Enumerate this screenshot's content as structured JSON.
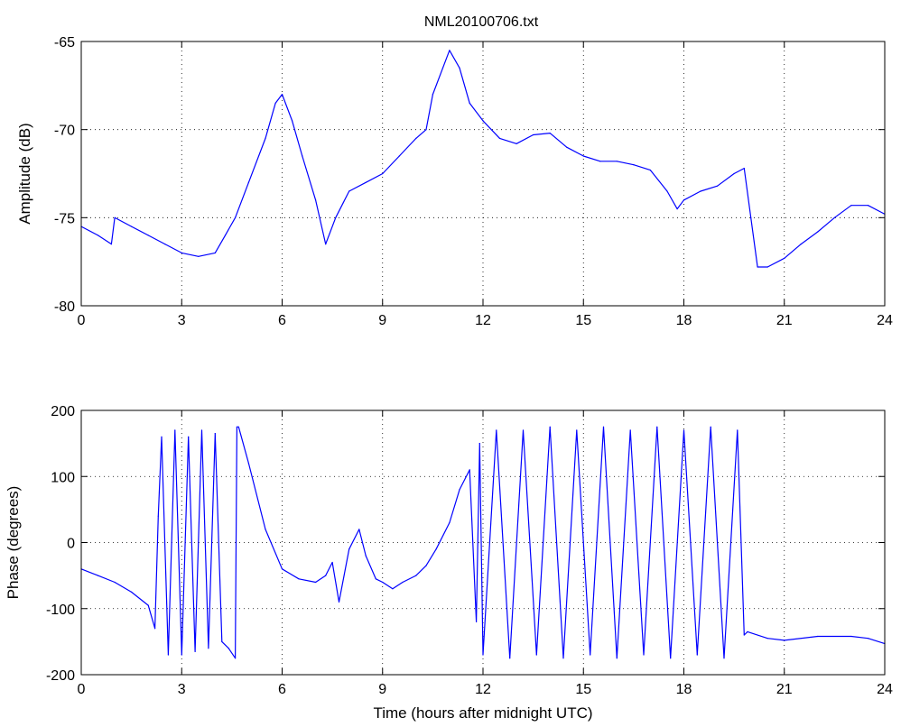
{
  "chart_data": [
    {
      "type": "line",
      "title": "NML20100706.txt",
      "xlabel": "",
      "ylabel": "Amplitude (dB)",
      "xlim": [
        0,
        24
      ],
      "ylim": [
        -80,
        -65
      ],
      "xticks": [
        "0",
        "3",
        "6",
        "9",
        "12",
        "15",
        "18",
        "21",
        "24"
      ],
      "yticks": [
        "-80",
        "-75",
        "-70",
        "-65"
      ],
      "grid": true,
      "color": "#0000ff",
      "series": [
        {
          "x": [
            0,
            0.5,
            0.9,
            1.0,
            1.5,
            2.0,
            2.5,
            3.0,
            3.5,
            4.0,
            4.3,
            4.6,
            5.0,
            5.5,
            5.8,
            6.0,
            6.3,
            6.6,
            7.0,
            7.3,
            7.6,
            8.0,
            8.5,
            9.0,
            9.5,
            10.0,
            10.3,
            10.5,
            10.8,
            11.0,
            11.3,
            11.6,
            12.0,
            12.5,
            13.0,
            13.5,
            14.0,
            14.5,
            15.0,
            15.5,
            16.0,
            16.5,
            17.0,
            17.5,
            17.8,
            18.0,
            18.5,
            19.0,
            19.5,
            19.8,
            20.0,
            20.2,
            20.5,
            21.0,
            21.5,
            22.0,
            22.5,
            23.0,
            23.5,
            24.0
          ],
          "y": [
            -75.5,
            -76.0,
            -76.5,
            -75.0,
            -75.5,
            -76.0,
            -76.5,
            -77.0,
            -77.2,
            -77.0,
            -76.0,
            -75.0,
            -73.0,
            -70.5,
            -68.5,
            -68.0,
            -69.5,
            -71.5,
            -74.0,
            -76.5,
            -75.0,
            -73.5,
            -73.0,
            -72.5,
            -71.5,
            -70.5,
            -70.0,
            -68.0,
            -66.5,
            -65.5,
            -66.5,
            -68.5,
            -69.5,
            -70.5,
            -70.8,
            -70.3,
            -70.2,
            -71.0,
            -71.5,
            -71.8,
            -71.8,
            -72.0,
            -72.3,
            -73.5,
            -74.5,
            -74.0,
            -73.5,
            -73.2,
            -72.5,
            -72.2,
            -75.0,
            -77.8,
            -77.8,
            -77.3,
            -76.5,
            -75.8,
            -75.0,
            -74.3,
            -74.3,
            -74.8
          ]
        }
      ]
    },
    {
      "type": "line",
      "title": "",
      "xlabel": "Time (hours after midnight UTC)",
      "ylabel": "Phase (degrees)",
      "xlim": [
        0,
        24
      ],
      "ylim": [
        -200,
        200
      ],
      "xticks": [
        "0",
        "3",
        "6",
        "9",
        "12",
        "15",
        "18",
        "21",
        "24"
      ],
      "yticks": [
        "-200",
        "-100",
        "0",
        "100",
        "200"
      ],
      "grid": true,
      "color": "#0000ff",
      "series": [
        {
          "x": [
            0,
            0.5,
            1.0,
            1.5,
            2.0,
            2.2,
            2.3,
            2.4,
            2.6,
            2.8,
            3.0,
            3.2,
            3.4,
            3.6,
            3.8,
            4.0,
            4.2,
            4.4,
            4.6,
            4.65,
            4.7,
            5.0,
            5.5,
            6.0,
            6.5,
            7.0,
            7.3,
            7.5,
            7.7,
            8.0,
            8.3,
            8.5,
            8.8,
            9.0,
            9.3,
            9.6,
            10.0,
            10.3,
            10.6,
            11.0,
            11.3,
            11.6,
            11.8,
            11.9,
            12.0,
            12.4,
            12.8,
            13.2,
            13.6,
            14.0,
            14.4,
            14.8,
            15.2,
            15.6,
            16.0,
            16.4,
            16.8,
            17.2,
            17.6,
            18.0,
            18.4,
            18.8,
            19.2,
            19.6,
            19.8,
            19.9,
            20.5,
            21.0,
            22.0,
            23.0,
            23.5,
            24.0
          ],
          "y": [
            -40,
            -50,
            -60,
            -75,
            -95,
            -130,
            40,
            160,
            -170,
            170,
            -170,
            160,
            -165,
            170,
            -160,
            165,
            -150,
            -160,
            -175,
            175,
            175,
            120,
            20,
            -40,
            -55,
            -60,
            -50,
            -30,
            -90,
            -10,
            20,
            -20,
            -55,
            -60,
            -70,
            -60,
            -50,
            -35,
            -10,
            30,
            80,
            110,
            -120,
            150,
            -170,
            170,
            -175,
            170,
            -170,
            175,
            -175,
            170,
            -170,
            175,
            -175,
            170,
            -170,
            175,
            -175,
            170,
            -170,
            175,
            -175,
            170,
            -140,
            -135,
            -145,
            -148,
            -142,
            -142,
            -145,
            -153
          ]
        }
      ]
    }
  ]
}
